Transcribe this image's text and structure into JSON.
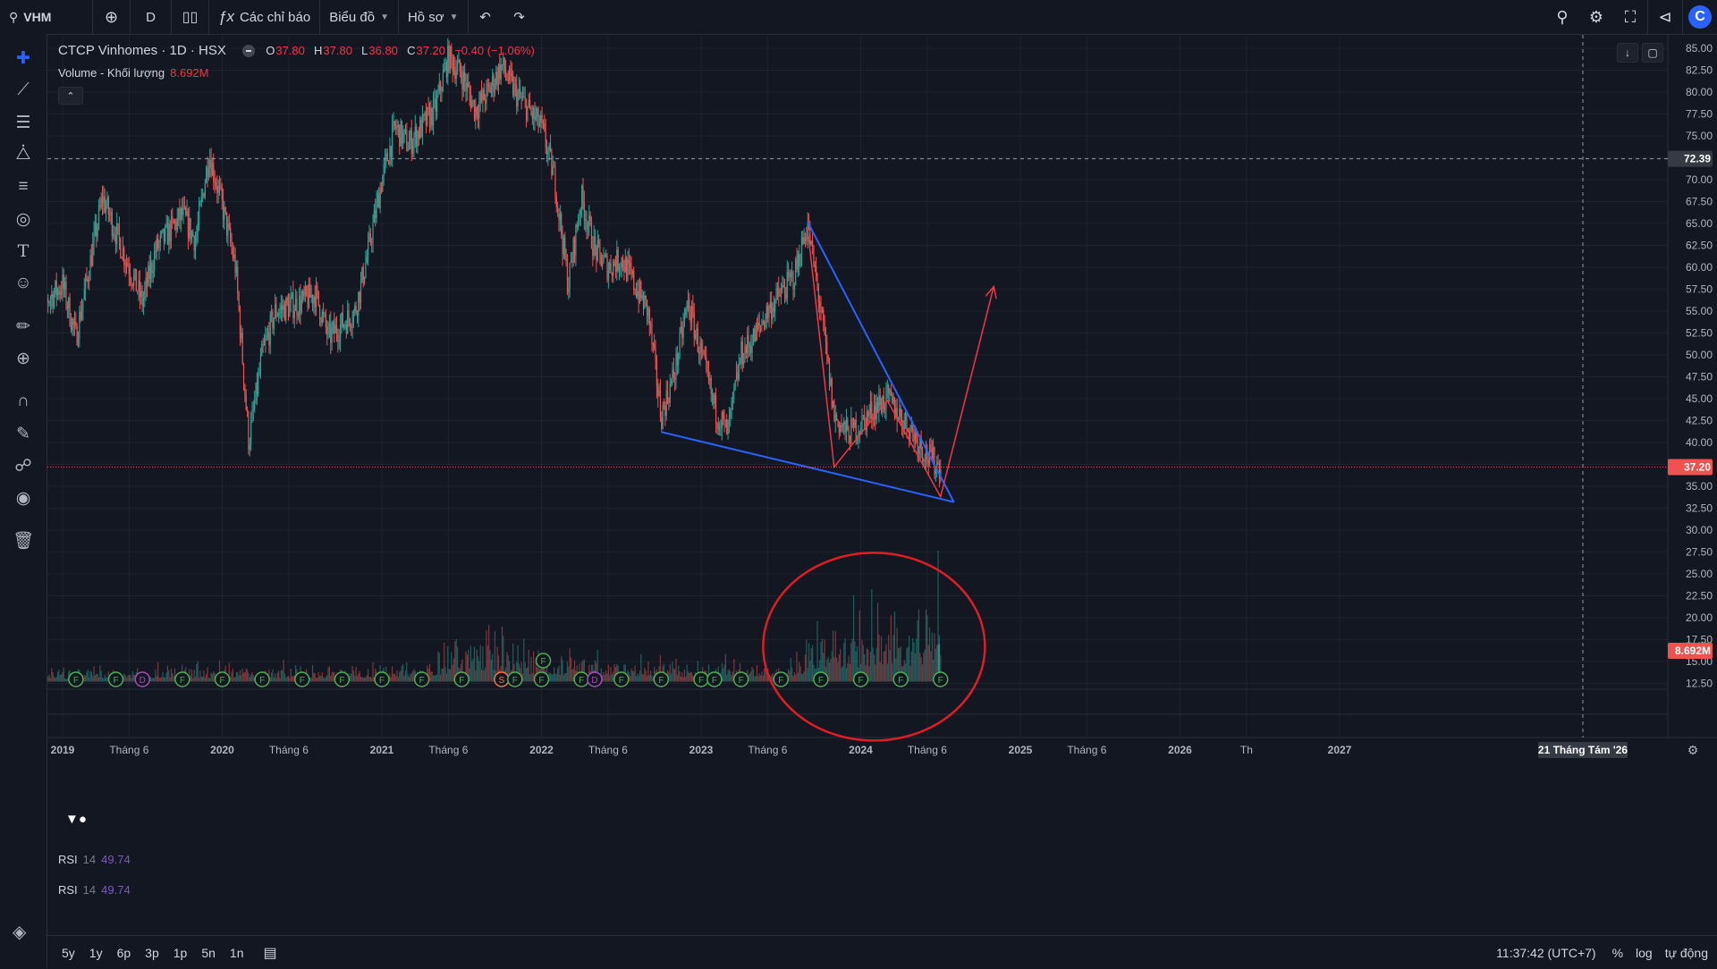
{
  "toolbar": {
    "symbol": "VHM",
    "interval": "D",
    "indicators_label": "Các chỉ báo",
    "chart_menu_label": "Biểu đồ",
    "profile_menu_label": "Hồ sơ"
  },
  "legend": {
    "title": "CTCP Vinhomes · 1D · HSX",
    "o_label": "O",
    "o": "37.80",
    "h_label": "H",
    "h": "37.80",
    "l_label": "L",
    "l": "36.80",
    "c_label": "C",
    "c": "37.20",
    "change": "−0.40 (−1.06%)",
    "volume_label": "Volume - Khối lượng",
    "volume_value": "8.692M"
  },
  "rsi_panes": [
    {
      "name": "RSI",
      "period": "14",
      "value": "49.74"
    },
    {
      "name": "RSI",
      "period": "14",
      "value": "49.74"
    }
  ],
  "bottom": {
    "ranges": [
      "5y",
      "1y",
      "6p",
      "3p",
      "1p",
      "5n",
      "1n"
    ],
    "clock": "11:37:42 (UTC+7)",
    "percent": "%",
    "log": "log",
    "auto": "tự động"
  },
  "colors": {
    "up": "#26a69a",
    "down": "#ef5350",
    "trendline": "#2962ff",
    "drawing_red": "#f23645",
    "background": "#131722"
  },
  "chart_data": {
    "type": "candlestick",
    "x_ticks": [
      "2019",
      "Tháng 6",
      "2020",
      "Tháng 6",
      "2021",
      "Tháng 6",
      "2022",
      "Tháng 6",
      "2023",
      "Tháng 6",
      "2024",
      "Tháng 6",
      "2025",
      "Tháng 6",
      "2026",
      "Th",
      "2027"
    ],
    "x_tick_dates": [
      "2019-01",
      "2019-06",
      "2020-01",
      "2020-06",
      "2021-01",
      "2021-06",
      "2022-01",
      "2022-06",
      "2023-01",
      "2023-06",
      "2024-01",
      "2024-06",
      "2025-01",
      "2025-06",
      "2026-01",
      "2026-06",
      "2027-01"
    ],
    "y_ticks": [
      "85.00",
      "82.50",
      "80.00",
      "77.50",
      "75.00",
      "72.50",
      "70.00",
      "67.50",
      "65.00",
      "62.50",
      "60.00",
      "57.50",
      "55.00",
      "52.50",
      "50.00",
      "47.50",
      "45.00",
      "42.50",
      "40.00",
      "37.50",
      "35.00",
      "32.50",
      "30.00",
      "27.50",
      "25.00",
      "22.50",
      "20.00",
      "17.50",
      "15.00",
      "12.50"
    ],
    "ylim": [
      11.5,
      87.5
    ],
    "last_price": 37.2,
    "last_price_label": "37.20",
    "crosshair_price": "72.39",
    "crosshair_date": "21 Tháng Tám '26",
    "volume_last_label": "8.692M",
    "price_path": [
      [
        "2018-11",
        55
      ],
      [
        "2019-01",
        58
      ],
      [
        "2019-02",
        52
      ],
      [
        "2019-04",
        68
      ],
      [
        "2019-05",
        64
      ],
      [
        "2019-07",
        56
      ],
      [
        "2019-08",
        62
      ],
      [
        "2019-10",
        66
      ],
      [
        "2019-11",
        63
      ],
      [
        "2019-12",
        73
      ],
      [
        "2020-01",
        67
      ],
      [
        "2020-02",
        60
      ],
      [
        "2020-03",
        40
      ],
      [
        "2020-04",
        50
      ],
      [
        "2020-05",
        55
      ],
      [
        "2020-07",
        56
      ],
      [
        "2020-08",
        57
      ],
      [
        "2020-09",
        52
      ],
      [
        "2020-11",
        55
      ],
      [
        "2020-12",
        62
      ],
      [
        "2021-01",
        70
      ],
      [
        "2021-02",
        76
      ],
      [
        "2021-03",
        74
      ],
      [
        "2021-05",
        78
      ],
      [
        "2021-06",
        84
      ],
      [
        "2021-07",
        82
      ],
      [
        "2021-08",
        78
      ],
      [
        "2021-09",
        80
      ],
      [
        "2021-10",
        83
      ],
      [
        "2021-11",
        80
      ],
      [
        "2022-01",
        76
      ],
      [
        "2022-02",
        70
      ],
      [
        "2022-03",
        58
      ],
      [
        "2022-04",
        68
      ],
      [
        "2022-05",
        62
      ],
      [
        "2022-06",
        60
      ],
      [
        "2022-07",
        61
      ],
      [
        "2022-09",
        55
      ],
      [
        "2022-10",
        43
      ],
      [
        "2022-11",
        48
      ],
      [
        "2022-12",
        56
      ],
      [
        "2023-01",
        50
      ],
      [
        "2023-02",
        44
      ],
      [
        "2023-03",
        41
      ],
      [
        "2023-04",
        50
      ],
      [
        "2023-05",
        52
      ],
      [
        "2023-06",
        55
      ],
      [
        "2023-07",
        57
      ],
      [
        "2023-08",
        59
      ],
      [
        "2023-09",
        65
      ],
      [
        "2023-10",
        55
      ],
      [
        "2023-11",
        43
      ],
      [
        "2023-12",
        41
      ],
      [
        "2024-01",
        42
      ],
      [
        "2024-02",
        44
      ],
      [
        "2024-03",
        45
      ],
      [
        "2024-04",
        43
      ],
      [
        "2024-05",
        41
      ],
      [
        "2024-06",
        38.5
      ],
      [
        "2024-07",
        37.2
      ]
    ],
    "volume_path_millions": [
      [
        "2018-11",
        1.0
      ],
      [
        "2019-06",
        1.2
      ],
      [
        "2020-03",
        1.5
      ],
      [
        "2020-10",
        1.3
      ],
      [
        "2021-04",
        2.0
      ],
      [
        "2021-07",
        3.5
      ],
      [
        "2021-09",
        4.5
      ],
      [
        "2021-11",
        3.0
      ],
      [
        "2022-03",
        2.5
      ],
      [
        "2022-08",
        2.0
      ],
      [
        "2023-02",
        1.8
      ],
      [
        "2023-08",
        2.2
      ],
      [
        "2023-10",
        5.0
      ],
      [
        "2024-01",
        5.5
      ],
      [
        "2024-03",
        6.5
      ],
      [
        "2024-05",
        5.0
      ],
      [
        "2024-07",
        8.7
      ]
    ],
    "volume_spike": [
      "2024-07",
      18.0
    ],
    "events": [
      {
        "label": "F",
        "date": "2018-11"
      },
      {
        "label": "F",
        "date": "2019-02"
      },
      {
        "label": "F",
        "date": "2019-05"
      },
      {
        "label": "D",
        "date": "2019-07"
      },
      {
        "label": "F",
        "date": "2019-10"
      },
      {
        "label": "F",
        "date": "2020-01"
      },
      {
        "label": "F",
        "date": "2020-04"
      },
      {
        "label": "F",
        "date": "2020-07"
      },
      {
        "label": "F",
        "date": "2020-10"
      },
      {
        "label": "F",
        "date": "2021-01"
      },
      {
        "label": "F",
        "date": "2021-04"
      },
      {
        "label": "F",
        "date": "2021-07"
      },
      {
        "label": "S",
        "date": "2021-10"
      },
      {
        "label": "F",
        "date": "2021-11"
      },
      {
        "label": "F",
        "date": "2022-01"
      },
      {
        "label": "F",
        "date": "2022-04"
      },
      {
        "label": "D",
        "date": "2022-05"
      },
      {
        "label": "F",
        "date": "2022-07"
      },
      {
        "label": "F",
        "date": "2022-10"
      },
      {
        "label": "F",
        "date": "2023-01"
      },
      {
        "label": "F",
        "date": "2023-02"
      },
      {
        "label": "F",
        "date": "2023-04"
      },
      {
        "label": "F",
        "date": "2023-07"
      },
      {
        "label": "F",
        "date": "2023-10"
      },
      {
        "label": "F",
        "date": "2024-01"
      },
      {
        "label": "F",
        "date": "2024-04"
      },
      {
        "label": "F",
        "date": "2024-07"
      }
    ],
    "raised_event": {
      "label": "F",
      "date": "2022-01"
    },
    "drawings": {
      "blue_lower": [
        [
          "2022-10",
          41.2
        ],
        [
          "2024-08",
          33.2
        ]
      ],
      "blue_upper": [
        [
          "2023-09",
          65.2
        ],
        [
          "2024-08",
          33.2
        ]
      ],
      "red_path": [
        [
          "2023-09",
          64.5
        ],
        [
          "2023-11",
          37.2
        ],
        [
          "2024-03",
          44.8
        ],
        [
          "2024-07",
          33.8
        ],
        [
          "2024-11",
          57.8
        ]
      ],
      "ellipse_center": [
        "2024-02",
        17.0
      ]
    },
    "grid": true
  }
}
